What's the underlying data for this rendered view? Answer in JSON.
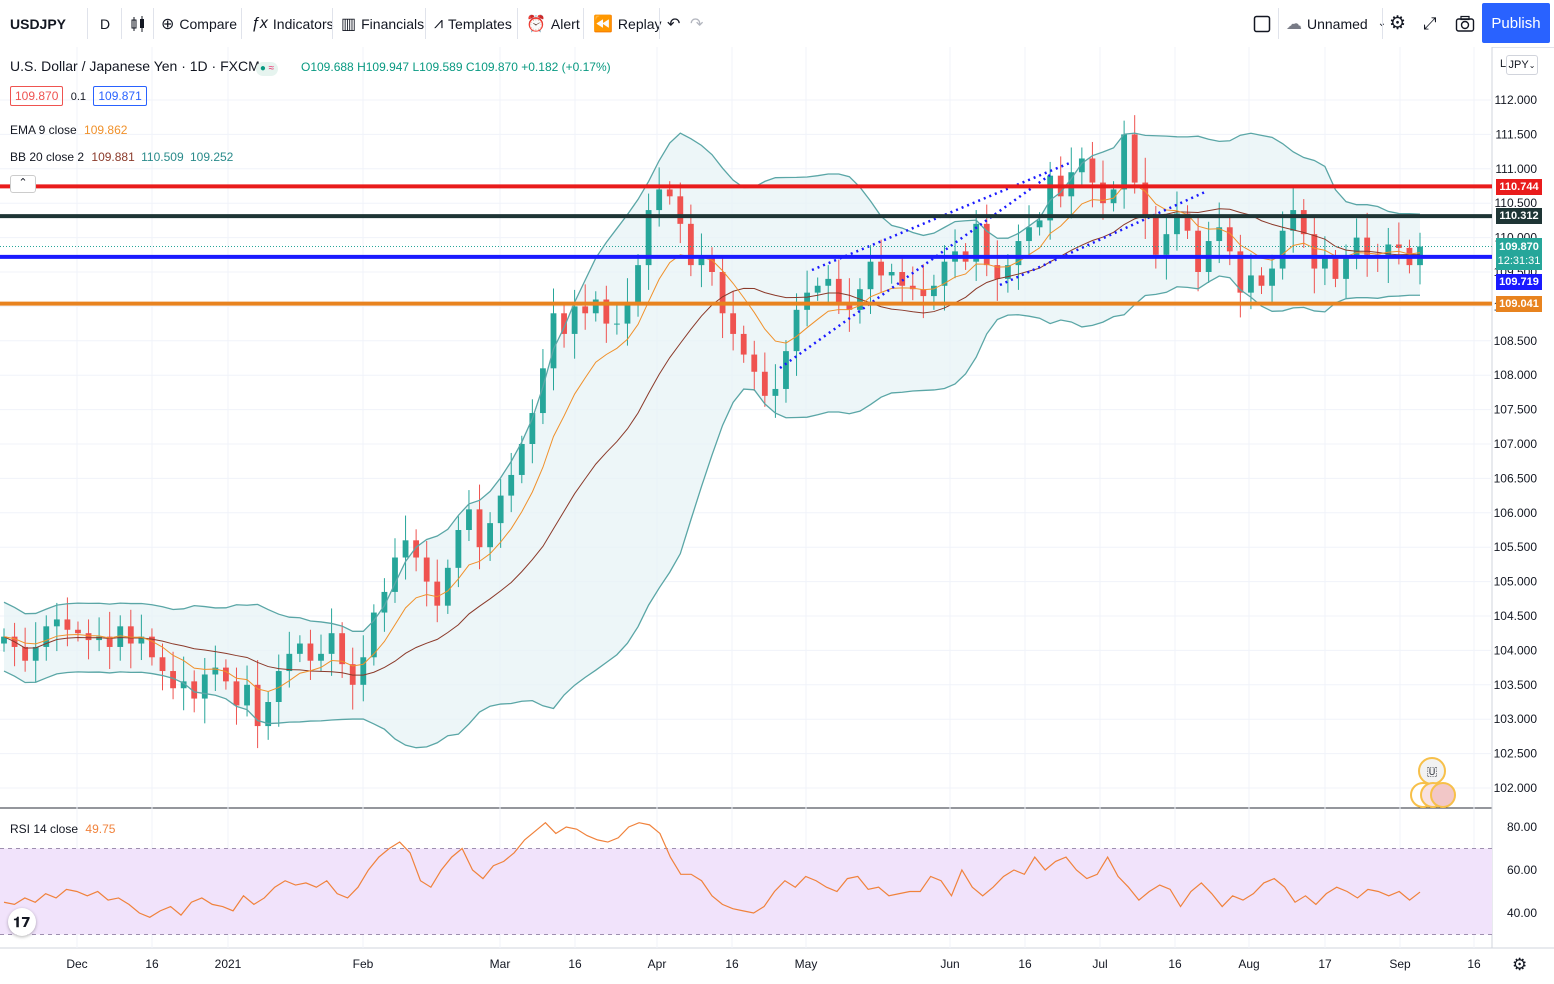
{
  "toolbar": {
    "symbol": "USDJPY",
    "interval": "D",
    "compare": "Compare",
    "indicators": "Indicators",
    "financials": "Financials",
    "templates": "Templates",
    "alert": "Alert",
    "replay": "Replay",
    "layout_name": "Unnamed",
    "publish": "Publish"
  },
  "legend": {
    "title": "U.S. Dollar / Japanese Yen · 1D · FXCM",
    "open": "O109.688",
    "high": "H109.947",
    "low": "L109.589",
    "close": "C109.870",
    "change": "+0.182 (+0.17%)",
    "bid": "109.870",
    "spread": "0.1",
    "ask": "109.871",
    "ema_label": "EMA 9 close",
    "ema_value": "109.862",
    "bb_label": "BB 20 close 2",
    "bb_basis": "109.881",
    "bb_upper": "110.509",
    "bb_lower": "109.252",
    "rsi_label": "RSI 14 close",
    "rsi_value": "49.75"
  },
  "axis": {
    "currency": "JPY",
    "scale_flag": "L"
  },
  "price_tags": {
    "red": "110.744",
    "dark": "110.312",
    "last": "109.870",
    "countdown": "12:31:31",
    "blue": "109.719",
    "orange": "109.041"
  },
  "colors": {
    "up": "#26a69a",
    "down": "#ef5350",
    "red_line": "#e91c1c",
    "dark_line": "#1e3535",
    "blue_line": "#1a1aff",
    "orange_line": "#e8831f",
    "ema": "#f0912b",
    "bb": "#5aa6a6",
    "basis": "#8b3a2a",
    "rsi": "#f0823c",
    "rsi_band": "#f1e3fb",
    "publish": "#2962ff"
  },
  "chart_data": {
    "type": "candlestick",
    "price_axis": [
      "112.000",
      "111.500",
      "111.000",
      "110.500",
      "110.000",
      "109.500",
      "109.000",
      "108.500",
      "108.000",
      "107.500",
      "107.000",
      "106.500",
      "106.000",
      "105.500",
      "105.000",
      "104.500",
      "104.000",
      "103.500",
      "103.000",
      "102.500",
      "102.000"
    ],
    "ylim": [
      101.7,
      112.4
    ],
    "time_axis": [
      "Dec",
      "16",
      "2021",
      "Feb",
      "Mar",
      "16",
      "Apr",
      "16",
      "May",
      "Jun",
      "16",
      "Jul",
      "16",
      "Aug",
      "17",
      "Sep",
      "16"
    ],
    "close_series": [
      104.2,
      104.05,
      103.85,
      104.05,
      104.35,
      104.45,
      104.3,
      104.25,
      104.15,
      104.2,
      104.05,
      104.35,
      104.1,
      104.2,
      103.9,
      103.7,
      103.45,
      103.55,
      103.3,
      103.65,
      103.75,
      103.55,
      103.2,
      103.5,
      102.9,
      103.25,
      103.7,
      103.95,
      104.1,
      103.85,
      103.95,
      104.25,
      103.8,
      103.5,
      103.9,
      104.55,
      104.85,
      105.35,
      105.6,
      105.35,
      105.0,
      104.65,
      105.2,
      105.75,
      106.05,
      105.5,
      105.85,
      106.25,
      106.55,
      107.0,
      107.45,
      108.1,
      108.9,
      108.6,
      109.0,
      108.9,
      109.1,
      108.75,
      108.75,
      109.05,
      109.6,
      110.4,
      110.7,
      110.6,
      110.2,
      109.6,
      109.7,
      109.5,
      108.9,
      108.6,
      108.3,
      108.05,
      107.7,
      107.8,
      108.35,
      108.95,
      109.2,
      109.3,
      109.4,
      109.05,
      108.95,
      109.25,
      109.65,
      109.45,
      109.5,
      109.3,
      109.25,
      109.15,
      109.3,
      109.65,
      109.8,
      109.65,
      110.2,
      109.6,
      109.4,
      109.6,
      109.95,
      110.15,
      110.25,
      110.9,
      110.6,
      110.95,
      111.15,
      110.8,
      110.5,
      110.7,
      111.5,
      110.8,
      110.3,
      109.75,
      110.05,
      110.35,
      110.1,
      109.5,
      109.95,
      110.15,
      109.8,
      109.2,
      109.45,
      109.3,
      109.55,
      110.1,
      110.4,
      110.05,
      109.55,
      109.7,
      109.4,
      109.7,
      110.0,
      109.75,
      109.7,
      109.9,
      109.85,
      109.6,
      109.87
    ],
    "ema_label": "EMA 9",
    "bb_label": "BB 20, 2",
    "horizontal_levels": [
      110.744,
      110.312,
      109.719,
      109.041
    ],
    "last_price": 109.87,
    "rsi": {
      "label": "RSI 14",
      "axis": [
        "80.00",
        "60.00",
        "40.00"
      ],
      "bands": [
        70,
        30
      ],
      "values": [
        45,
        44,
        47,
        45,
        49,
        47,
        51,
        50,
        48,
        50,
        46,
        47,
        44,
        40,
        38,
        41,
        43,
        39,
        45,
        47,
        44,
        43,
        41,
        48,
        44,
        47,
        52,
        55,
        53,
        54,
        52,
        55,
        49,
        47,
        52,
        60,
        66,
        70,
        73,
        68,
        55,
        52,
        60,
        66,
        70,
        60,
        56,
        62,
        64,
        68,
        74,
        78,
        82,
        77,
        80,
        79,
        76,
        74,
        73,
        75,
        80,
        82,
        81,
        77,
        66,
        58,
        58,
        55,
        48,
        44,
        42,
        41,
        40,
        43,
        50,
        55,
        52,
        57,
        55,
        52,
        50,
        56,
        57,
        51,
        52,
        48,
        49,
        50,
        50,
        57,
        55,
        48,
        60,
        52,
        48,
        52,
        57,
        60,
        58,
        66,
        60,
        64,
        66,
        60,
        56,
        58,
        66,
        57,
        52,
        46,
        50,
        53,
        51,
        43,
        50,
        54,
        49,
        43,
        48,
        46,
        49,
        54,
        56,
        52,
        45,
        48,
        44,
        49,
        52,
        50,
        47,
        51,
        50,
        48,
        50,
        46,
        49.75
      ]
    }
  }
}
